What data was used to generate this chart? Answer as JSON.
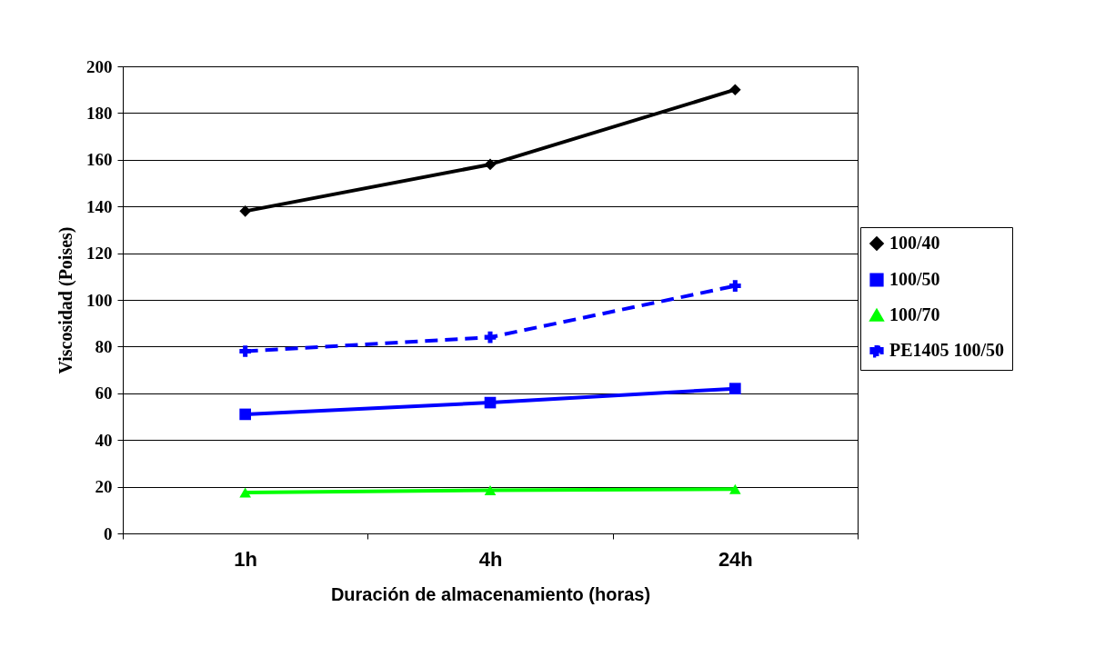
{
  "chart_data": {
    "type": "line",
    "xlabel": "Duración de almacenamiento (horas)",
    "ylabel": "Viscosidad (Poises)",
    "categories": [
      "1h",
      "4h",
      "24h"
    ],
    "series": [
      {
        "name": "100/40",
        "color": "#000000",
        "marker": "diamond",
        "line_style": "solid",
        "values": [
          138,
          158,
          190
        ]
      },
      {
        "name": "100/50",
        "color": "#0000ff",
        "marker": "square",
        "line_style": "solid",
        "values": [
          51,
          56,
          62
        ]
      },
      {
        "name": "100/70",
        "color": "#00ff00",
        "marker": "triangle",
        "line_style": "solid",
        "values": [
          17.5,
          18.5,
          19
        ]
      },
      {
        "name": "PE1405 100/50",
        "color": "#0000ff",
        "marker": "cross",
        "line_style": "dashed",
        "values": [
          78,
          84,
          106
        ]
      }
    ],
    "ylim": [
      0,
      200
    ],
    "yticks": [
      0,
      20,
      40,
      60,
      80,
      100,
      120,
      140,
      160,
      180,
      200
    ],
    "grid": "y",
    "legend": "right"
  }
}
